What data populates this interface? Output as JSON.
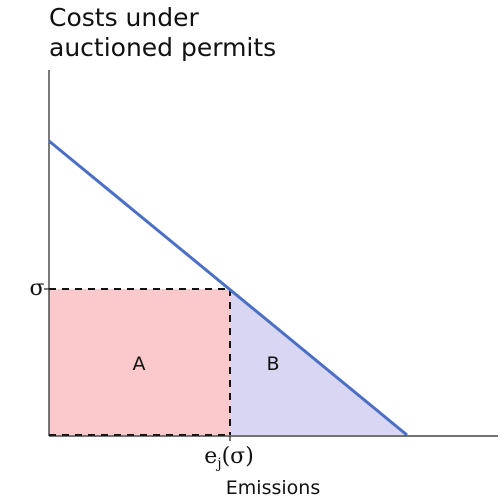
{
  "title": {
    "line1": "Costs under",
    "line2": "auctioned permits"
  },
  "axes": {
    "x_label": "Emissions",
    "y_tick_label": "σ",
    "x_tick": {
      "main": "e",
      "subscript": "j",
      "suffix": "(σ)"
    }
  },
  "regions": {
    "a_label": "A",
    "b_label": "B"
  },
  "colors": {
    "region_a": "#fbc9cc",
    "region_b": "#d8d6f2",
    "demand_line": "#4a6fc4",
    "axis": "#222222",
    "dashed": "#111111"
  }
}
